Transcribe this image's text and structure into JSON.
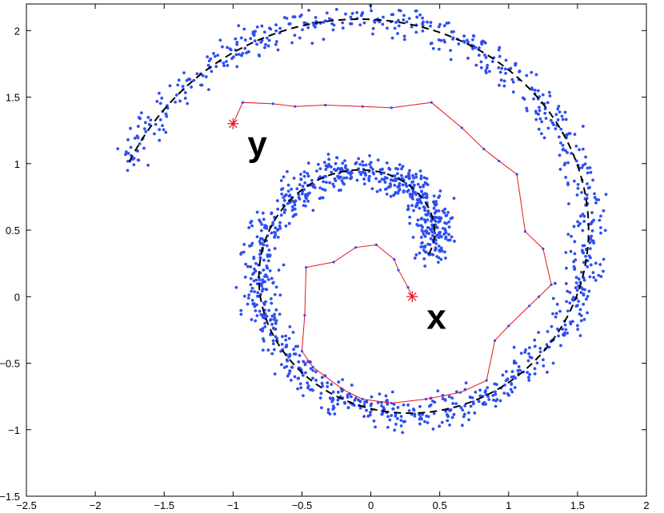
{
  "chart_data": {
    "type": "scatter",
    "title": "",
    "xlabel": "",
    "ylabel": "",
    "xlim": [
      -2.5,
      2
    ],
    "ylim": [
      -1.5,
      2.2
    ],
    "xticks": [
      -2.5,
      -2,
      -1.5,
      -1,
      -0.5,
      0,
      0.5,
      1,
      1.5,
      2
    ],
    "xtick_labels": [
      "−2.5",
      "−2",
      "−1.5",
      "−1",
      "−0.5",
      "0",
      "0.5",
      "1",
      "1.5",
      "2"
    ],
    "yticks": [
      -1.5,
      -1,
      -0.5,
      0,
      0.5,
      1,
      1.5,
      2
    ],
    "ytick_labels": [
      "−1.5",
      "−1",
      "−0.5",
      "0",
      "0.5",
      "1",
      "1.5",
      "2"
    ],
    "grid": false,
    "colors": {
      "points": "#2f4ff0",
      "path": "#e8141c",
      "curve": "#000000",
      "markers": "#e8141c"
    },
    "spiral": {
      "center": [
        0.1,
        0.32
      ],
      "start_angle_deg": 0,
      "end_angle_deg": 520,
      "start_radius": 0.32,
      "end_radius": 1.98,
      "noise_std": 0.13,
      "points_per_turn_unit": 540
    },
    "path": [
      [
        0.3,
        0.0
      ],
      [
        0.27,
        0.07
      ],
      [
        0.2,
        0.2
      ],
      [
        0.17,
        0.28
      ],
      [
        0.04,
        0.39
      ],
      [
        -0.11,
        0.37
      ],
      [
        -0.27,
        0.26
      ],
      [
        -0.47,
        0.22
      ],
      [
        -0.48,
        -0.14
      ],
      [
        -0.5,
        -0.41
      ],
      [
        -0.42,
        -0.53
      ],
      [
        -0.2,
        -0.7
      ],
      [
        -0.06,
        -0.77
      ],
      [
        0.15,
        -0.8
      ],
      [
        0.4,
        -0.77
      ],
      [
        0.65,
        -0.72
      ],
      [
        0.84,
        -0.63
      ],
      [
        0.9,
        -0.33
      ],
      [
        1.0,
        -0.22
      ],
      [
        1.15,
        -0.07
      ],
      [
        1.22,
        0.0
      ],
      [
        1.31,
        0.09
      ],
      [
        1.25,
        0.36
      ],
      [
        1.12,
        0.49
      ],
      [
        1.06,
        0.92
      ],
      [
        0.93,
        1.02
      ],
      [
        0.82,
        1.11
      ],
      [
        0.66,
        1.27
      ],
      [
        0.44,
        1.46
      ],
      [
        0.15,
        1.42
      ],
      [
        -0.06,
        1.43
      ],
      [
        -0.33,
        1.44
      ],
      [
        -0.55,
        1.43
      ],
      [
        -0.71,
        1.45
      ],
      [
        -0.93,
        1.46
      ],
      [
        -1.0,
        1.3
      ]
    ],
    "markers": [
      {
        "x": 0.3,
        "y": 0.0,
        "label": "x"
      },
      {
        "x": -1.0,
        "y": 1.3,
        "label": "y"
      }
    ]
  }
}
